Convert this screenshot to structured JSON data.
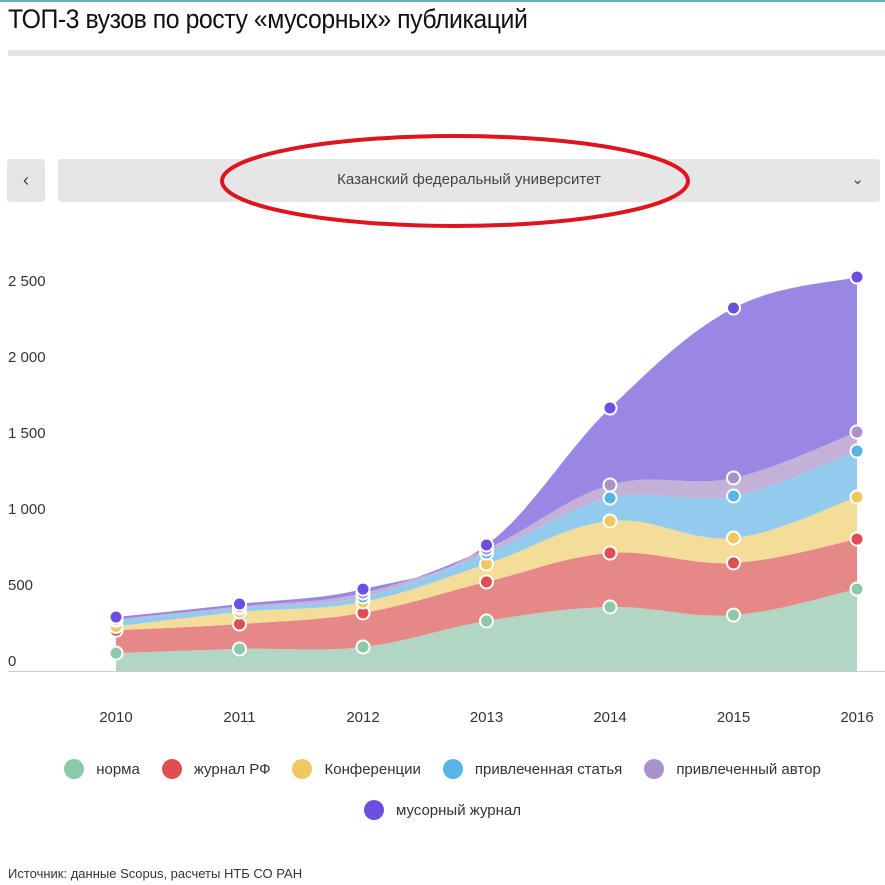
{
  "header": {
    "title": "ТОП-3 вузов по росту «мусорных» публикаций"
  },
  "selector": {
    "prev_icon": "chevron-left-icon",
    "prev_glyph": "‹",
    "value": "Казанский федеральный университет",
    "chevron_glyph": "⌄",
    "annotation_color": "#e0141e"
  },
  "chart_data": {
    "type": "area",
    "stacked": true,
    "title": "",
    "xlabel": "",
    "ylabel": "",
    "categories": [
      "2010",
      "2011",
      "2012",
      "2013",
      "2014",
      "2015",
      "2016"
    ],
    "ylim": [
      0,
      2500
    ],
    "yticks": [
      {
        "v": 0,
        "label": "0"
      },
      {
        "v": 500,
        "label": "500"
      },
      {
        "v": 1000,
        "label": "1 000"
      },
      {
        "v": 1500,
        "label": "1 500"
      },
      {
        "v": 2000,
        "label": "2 000"
      },
      {
        "v": 2500,
        "label": "2 500"
      }
    ],
    "legend_position": "bottom",
    "series": [
      {
        "name": "норма",
        "color": "#8cc9a9",
        "fill": "#b1d6c3",
        "values": [
          118,
          145,
          158,
          329,
          421,
          368,
          539
        ]
      },
      {
        "name": "журнал РФ",
        "color": "#df4e50",
        "fill": "#e68888",
        "values": [
          150,
          164,
          224,
          257,
          355,
          343,
          329
        ]
      },
      {
        "name": "Конференции",
        "color": "#f0c860",
        "fill": "#f4dc99",
        "values": [
          25,
          79,
          72,
          118,
          211,
          164,
          277
        ]
      },
      {
        "name": "привлеченная статья",
        "color": "#56b5e6",
        "fill": "#92cbee",
        "values": [
          40,
          26,
          33,
          72,
          151,
          276,
          302
        ]
      },
      {
        "name": "привлеченный автор",
        "color": "#a792c9",
        "fill": "#c4b1d8",
        "values": [
          7,
          10,
          26,
          27,
          86,
          119,
          125
        ]
      },
      {
        "name": "мусорный журнал",
        "color": "#6c4fe0",
        "fill": "#9a87e4",
        "values": [
          15,
          17,
          26,
          26,
          506,
          1118,
          1020
        ]
      }
    ]
  },
  "source": "Источник: данные Scopus, расчеты НТБ СО РАН"
}
